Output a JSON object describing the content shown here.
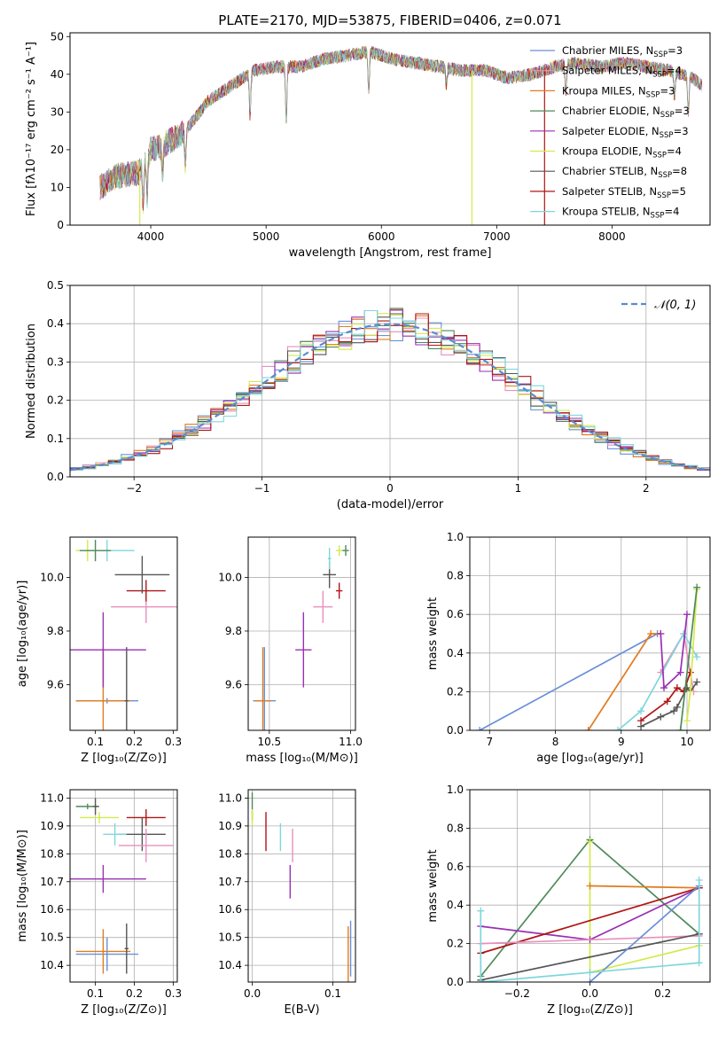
{
  "figure_title": "PLATE=2170, MJD=53875, FIBERID=0406, z=0.071",
  "models": [
    {
      "label": "Chabrier MILES, N",
      "sub": "SSP",
      "tail": "=3",
      "color": "#6a8fd8"
    },
    {
      "label": "Salpeter MILES, N",
      "sub": "SSP",
      "tail": "=4",
      "color": "#e88fbf"
    },
    {
      "label": "Kroupa MILES, N",
      "sub": "SSP",
      "tail": "=3",
      "color": "#e07b1f"
    },
    {
      "label": "Chabrier ELODIE, N",
      "sub": "SSP",
      "tail": "=3",
      "color": "#4e8a5a"
    },
    {
      "label": "Salpeter ELODIE, N",
      "sub": "SSP",
      "tail": "=3",
      "color": "#9a2fb5"
    },
    {
      "label": "Kroupa ELODIE, N",
      "sub": "SSP",
      "tail": "=4",
      "color": "#d4ea4a"
    },
    {
      "label": "Chabrier STELIB, N",
      "sub": "SSP",
      "tail": "=8",
      "color": "#555555"
    },
    {
      "label": "Salpeter STELIB, N",
      "sub": "SSP",
      "tail": "=5",
      "color": "#b01515"
    },
    {
      "label": "Kroupa STELIB, N",
      "sub": "SSP",
      "tail": "=4",
      "color": "#7fd6dc"
    }
  ],
  "chart_data": [
    {
      "id": "spectrum",
      "type": "line",
      "title": "PLATE=2170, MJD=53875, FIBERID=0406, z=0.071",
      "xlabel": "wavelength [Angstrom, rest frame]",
      "ylabel": "Flux [fλ10⁻¹⁷ erg cm⁻² s⁻¹ A⁻¹]",
      "xlim": [
        3300,
        8850
      ],
      "ylim": [
        0,
        51
      ],
      "xticks": [
        4000,
        5000,
        6000,
        7000,
        8000
      ],
      "yticks": [
        0,
        10,
        20,
        30,
        40,
        50
      ],
      "grid": false,
      "legend_position": "top-right",
      "continuum": {
        "x": [
          3560,
          3700,
          3900,
          4000,
          4100,
          4300,
          4500,
          4700,
          4900,
          5100,
          5300,
          5500,
          5700,
          5900,
          6100,
          6300,
          6500,
          6700,
          6900,
          7100,
          7300,
          7500,
          7700,
          7900,
          8100,
          8300,
          8500,
          8700,
          8780
        ],
        "y": [
          10,
          13,
          14,
          20,
          21,
          25,
          33,
          37,
          41,
          42,
          42,
          44,
          45,
          46,
          44,
          43,
          42,
          41,
          41,
          39,
          40,
          42,
          43,
          42,
          43,
          42,
          41,
          39,
          37
        ]
      },
      "absorption_dips": [
        {
          "x": 3934,
          "y": 6
        },
        {
          "x": 3968,
          "y": 7
        },
        {
          "x": 4102,
          "y": 14
        },
        {
          "x": 4300,
          "y": 15
        },
        {
          "x": 4861,
          "y": 29
        },
        {
          "x": 5175,
          "y": 27
        },
        {
          "x": 5890,
          "y": 35
        },
        {
          "x": 6563,
          "y": 37
        },
        {
          "x": 7600,
          "y": 35
        },
        {
          "x": 8542,
          "y": 34
        },
        {
          "x": 8662,
          "y": 30
        }
      ],
      "artifact_drops_x": [
        3905,
        6785,
        7415
      ]
    },
    {
      "id": "residuals",
      "type": "step",
      "xlabel": "(data-model)/error",
      "ylabel": "Normed distribution",
      "xlim": [
        -2.5,
        2.5
      ],
      "ylim": [
        0,
        0.5
      ],
      "xticks": [
        -2,
        -1,
        0,
        1,
        2
      ],
      "xtick_labels": [
        "−2",
        "−1",
        "0",
        "1",
        "2"
      ],
      "yticks": [
        0.0,
        0.1,
        0.2,
        0.3,
        0.4,
        0.5
      ],
      "ytick_labels": [
        "0.0",
        "0.1",
        "0.2",
        "0.3",
        "0.4",
        "0.5"
      ],
      "grid": true,
      "bin_width": 0.1,
      "reference_curve": {
        "label": "𝒩(0, 1)",
        "mean": 0,
        "sigma": 1,
        "style": "dashed",
        "color": "#5b8bd0"
      },
      "legend_position": "top-right"
    },
    {
      "id": "age-vs-Z",
      "type": "errorbar",
      "xlabel": "Z [log₁₀(Z/Z⊙)]",
      "ylabel": "age  [log₁₀(age/yr)]",
      "xlim": [
        0.035,
        0.31
      ],
      "ylim": [
        9.43,
        10.15
      ],
      "xticks": [
        0.1,
        0.2,
        0.3
      ],
      "xtick_labels": [
        "0.1",
        "0.2",
        "0.3"
      ],
      "yticks": [
        9.6,
        9.8,
        10.0
      ],
      "ytick_labels": [
        "9.6",
        "9.8",
        "10.0"
      ],
      "grid": false,
      "points": [
        {
          "model": 0,
          "x": 0.13,
          "xerr": 0.08,
          "y": 9.54,
          "yerr": 0.01
        },
        {
          "model": 2,
          "x": 0.12,
          "xerr": 0.07,
          "y": 9.54,
          "yerr": 0.2
        },
        {
          "model": 6,
          "x": 0.18,
          "xerr": 0.005,
          "y": 9.54,
          "yerr": 0.2
        },
        {
          "model": 4,
          "x": 0.12,
          "xerr": 0.11,
          "y": 9.73,
          "yerr": 0.14
        },
        {
          "model": 1,
          "x": 0.23,
          "xerr": 0.09,
          "y": 9.89,
          "yerr": 0.06
        },
        {
          "model": 7,
          "x": 0.23,
          "xerr": 0.05,
          "y": 9.95,
          "yerr": 0.04
        },
        {
          "model": 6,
          "x": 0.22,
          "xerr": 0.07,
          "y": 10.01,
          "yerr": 0.07
        },
        {
          "model": 8,
          "x": 0.13,
          "xerr": 0.07,
          "y": 10.1,
          "yerr": 0.04
        },
        {
          "model": 5,
          "x": 0.08,
          "xerr": 0.03,
          "y": 10.1,
          "yerr": 0.04
        },
        {
          "model": 3,
          "x": 0.1,
          "xerr": 0.04,
          "y": 10.1,
          "yerr": 0.04
        }
      ]
    },
    {
      "id": "age-vs-mass",
      "type": "errorbar",
      "xlabel": "mass [log₁₀(M/M⊙)]",
      "ylabel": "",
      "xlim": [
        10.37,
        11.03
      ],
      "ylim": [
        9.43,
        10.15
      ],
      "xticks": [
        10.5,
        11.0
      ],
      "xtick_labels": [
        "10.5",
        "11.0"
      ],
      "yticks": [
        9.6,
        9.8,
        10.0
      ],
      "ytick_labels": [
        "9.6",
        "9.8",
        "10.0"
      ],
      "grid": true,
      "points": [
        {
          "model": 0,
          "x": 10.47,
          "xerr": 0.07,
          "y": 9.54,
          "yerr": 0.2
        },
        {
          "model": 2,
          "x": 10.46,
          "xerr": 0.05,
          "y": 9.54,
          "yerr": 0.2
        },
        {
          "model": 4,
          "x": 10.71,
          "xerr": 0.05,
          "y": 9.73,
          "yerr": 0.14
        },
        {
          "model": 1,
          "x": 10.83,
          "xerr": 0.06,
          "y": 9.89,
          "yerr": 0.06
        },
        {
          "model": 7,
          "x": 10.93,
          "xerr": 0.02,
          "y": 9.95,
          "yerr": 0.03
        },
        {
          "model": 6,
          "x": 10.87,
          "xerr": 0.04,
          "y": 10.01,
          "yerr": 0.05
        },
        {
          "model": 8,
          "x": 10.87,
          "xerr": 0.01,
          "y": 10.07,
          "yerr": 0.04
        },
        {
          "model": 5,
          "x": 10.93,
          "xerr": 0.02,
          "y": 10.1,
          "yerr": 0.02
        },
        {
          "model": 3,
          "x": 10.97,
          "xerr": 0.02,
          "y": 10.1,
          "yerr": 0.02
        }
      ]
    },
    {
      "id": "weight-vs-age",
      "type": "line",
      "xlabel": "age  [log₁₀(age/yr)]",
      "ylabel": "mass weight",
      "xlim": [
        6.7,
        10.35
      ],
      "ylim": [
        0,
        1.0
      ],
      "xticks": [
        7,
        8,
        9,
        10
      ],
      "xtick_labels": [
        "7",
        "8",
        "9",
        "10"
      ],
      "yticks": [
        0,
        0.2,
        0.4,
        0.6,
        0.8,
        1.0
      ],
      "ytick_labels": [
        "0.0",
        "0.2",
        "0.4",
        "0.6",
        "0.8",
        "1.0"
      ],
      "grid": true,
      "series": [
        {
          "model": 0,
          "x": [
            6.85,
            9.55
          ],
          "y": [
            0.0,
            0.5
          ]
        },
        {
          "model": 2,
          "x": [
            8.5,
            9.45,
            9.6
          ],
          "y": [
            0.0,
            0.5,
            0.5
          ]
        },
        {
          "model": 1,
          "x": [
            9.6,
            9.95,
            10.1
          ],
          "y": [
            0.3,
            0.5,
            0.2
          ]
        },
        {
          "model": 8,
          "x": [
            8.95,
            9.3,
            9.95,
            10.15
          ],
          "y": [
            0.0,
            0.1,
            0.5,
            0.38
          ]
        },
        {
          "model": 4,
          "x": [
            9.6,
            9.65,
            9.9,
            10.0
          ],
          "y": [
            0.5,
            0.22,
            0.3,
            0.6
          ]
        },
        {
          "model": 7,
          "x": [
            9.3,
            9.7,
            9.85,
            9.95,
            10.05
          ],
          "y": [
            0.05,
            0.15,
            0.22,
            0.2,
            0.3
          ]
        },
        {
          "model": 6,
          "x": [
            9.3,
            9.6,
            9.8,
            9.85,
            10.0,
            10.05,
            10.15
          ],
          "y": [
            0.02,
            0.07,
            0.1,
            0.12,
            0.22,
            0.2,
            0.25
          ]
        },
        {
          "model": 5,
          "x": [
            10.0,
            10.05,
            10.15
          ],
          "y": [
            0.05,
            0.2,
            0.73
          ]
        },
        {
          "model": 3,
          "x": [
            9.9,
            10.15
          ],
          "y": [
            0.0,
            0.74
          ]
        }
      ]
    },
    {
      "id": "mass-vs-Z",
      "type": "errorbar",
      "xlabel": "Z [log₁₀(Z/Z⊙)]",
      "ylabel": "mass [log₁₀(M/M⊙)]",
      "xlim": [
        0.035,
        0.31
      ],
      "ylim": [
        10.34,
        11.03
      ],
      "xticks": [
        0.1,
        0.2,
        0.3
      ],
      "xtick_labels": [
        "0.1",
        "0.2",
        "0.3"
      ],
      "yticks": [
        10.4,
        10.5,
        10.6,
        10.7,
        10.8,
        10.9,
        11.0
      ],
      "ytick_labels": [
        "10.4",
        "10.5",
        "10.6",
        "10.7",
        "10.8",
        "10.9",
        "11.0"
      ],
      "grid": true,
      "points": [
        {
          "model": 3,
          "x": 0.08,
          "xerr": 0.03,
          "y": 10.97,
          "yerr": 0.01
        },
        {
          "model": 6,
          "x": 0.1,
          "xerr": 0.005,
          "y": 10.97,
          "yerr": 0.03
        },
        {
          "model": 5,
          "x": 0.11,
          "xerr": 0.05,
          "y": 10.93,
          "yerr": 0.02
        },
        {
          "model": 7,
          "x": 0.23,
          "xerr": 0.05,
          "y": 10.93,
          "yerr": 0.03
        },
        {
          "model": 6,
          "x": 0.22,
          "xerr": 0.06,
          "y": 10.87,
          "yerr": 0.06
        },
        {
          "model": 8,
          "x": 0.15,
          "xerr": 0.03,
          "y": 10.87,
          "yerr": 0.04
        },
        {
          "model": 1,
          "x": 0.23,
          "xerr": 0.07,
          "y": 10.83,
          "yerr": 0.06
        },
        {
          "model": 4,
          "x": 0.12,
          "xerr": 0.11,
          "y": 10.71,
          "yerr": 0.05
        },
        {
          "model": 0,
          "x": 0.13,
          "xerr": 0.08,
          "y": 10.44,
          "yerr": 0.06
        },
        {
          "model": 2,
          "x": 0.12,
          "xerr": 0.07,
          "y": 10.45,
          "yerr": 0.08
        },
        {
          "model": 6,
          "x": 0.18,
          "xerr": 0.005,
          "y": 10.46,
          "yerr": 0.09
        }
      ]
    },
    {
      "id": "mass-vs-EBV",
      "type": "errorbar",
      "xlabel": "E(B-V)",
      "ylabel": "",
      "xlim": [
        -0.005,
        0.128
      ],
      "ylim": [
        10.34,
        11.03
      ],
      "xticks": [
        0.0,
        0.1
      ],
      "xtick_labels": [
        "0.0",
        "0.1"
      ],
      "yticks": [
        10.4,
        10.5,
        10.6,
        10.7,
        10.8,
        10.9,
        11.0
      ],
      "ytick_labels": [
        "10.4",
        "10.5",
        "10.6",
        "10.7",
        "10.8",
        "10.9",
        "11.0"
      ],
      "grid": true,
      "points": [
        {
          "model": 3,
          "x": 0.0,
          "xerr": 0,
          "y": 10.97,
          "yerr": 0.05
        },
        {
          "model": 5,
          "x": 0.0,
          "xerr": 0,
          "y": 10.93,
          "yerr": 0.03
        },
        {
          "model": 7,
          "x": 0.017,
          "xerr": 0,
          "y": 10.88,
          "yerr": 0.07
        },
        {
          "model": 8,
          "x": 0.035,
          "xerr": 0,
          "y": 10.86,
          "yerr": 0.05
        },
        {
          "model": 1,
          "x": 0.05,
          "xerr": 0,
          "y": 10.83,
          "yerr": 0.06
        },
        {
          "model": 4,
          "x": 0.047,
          "xerr": 0,
          "y": 10.7,
          "yerr": 0.06
        },
        {
          "model": 2,
          "x": 0.119,
          "xerr": 0,
          "y": 10.44,
          "yerr": 0.1
        },
        {
          "model": 0,
          "x": 0.122,
          "xerr": 0,
          "y": 10.46,
          "yerr": 0.1
        }
      ]
    },
    {
      "id": "weight-vs-Z",
      "type": "line",
      "xlabel": "Z [log₁₀(Z/Z⊙)]",
      "ylabel": "mass weight",
      "xlim": [
        -0.33,
        0.33
      ],
      "ylim": [
        0,
        1.0
      ],
      "xticks": [
        -0.2,
        0.0,
        0.2
      ],
      "xtick_labels": [
        "−0.2",
        "0.0",
        "0.2"
      ],
      "yticks": [
        0,
        0.2,
        0.4,
        0.6,
        0.8,
        1.0
      ],
      "ytick_labels": [
        "0.0",
        "0.2",
        "0.4",
        "0.6",
        "0.8",
        "1.0"
      ],
      "grid": true,
      "series": [
        {
          "model": 3,
          "x": [
            -0.3,
            0.0,
            0.3
          ],
          "y": [
            0.03,
            0.74,
            0.25
          ]
        },
        {
          "model": 5,
          "x": [
            0.0,
            0.0,
            0.3
          ],
          "y": [
            0.73,
            0.05,
            0.19
          ]
        },
        {
          "model": 2,
          "x": [
            0.0,
            0.3
          ],
          "y": [
            0.5,
            0.49
          ]
        },
        {
          "model": 4,
          "x": [
            -0.3,
            0.0,
            0.3
          ],
          "y": [
            0.29,
            0.22,
            0.49
          ]
        },
        {
          "model": 7,
          "x": [
            -0.3,
            0.3
          ],
          "y": [
            0.15,
            0.49
          ]
        },
        {
          "model": 1,
          "x": [
            -0.3,
            0.3
          ],
          "y": [
            0.2,
            0.24
          ]
        },
        {
          "model": 6,
          "x": [
            -0.3,
            0.3
          ],
          "y": [
            0.01,
            0.25
          ]
        },
        {
          "model": 0,
          "x": [
            0.0,
            0.3
          ],
          "y": [
            0.0,
            0.5
          ]
        },
        {
          "model": 8,
          "x": [
            -0.3,
            -0.3,
            0.0,
            0.3,
            0.3
          ],
          "y": [
            0.37,
            0.0,
            0.05,
            0.1,
            0.53
          ]
        }
      ]
    }
  ]
}
